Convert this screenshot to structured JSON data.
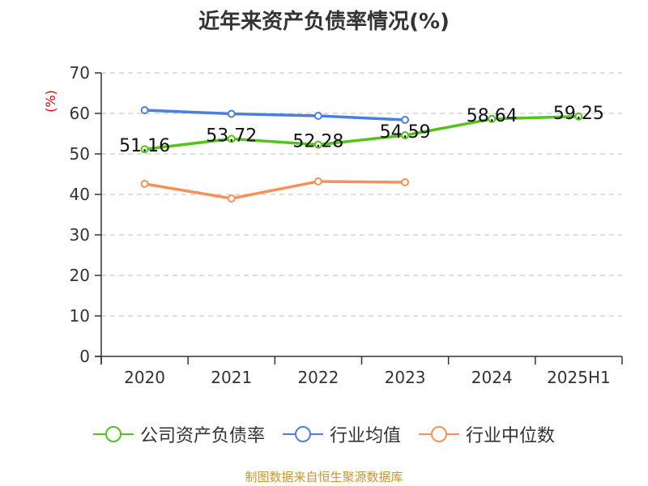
{
  "title": "近年来资产负债率情况(%)",
  "source": "制图数据来自恒生聚源数据库",
  "colors": {
    "company": "#52c41a",
    "industry_avg": "#4a7fde",
    "industry_median": "#f79159",
    "grid": "#cccccc",
    "axis": "#333333",
    "unit": "#e00000"
  },
  "chart_data": {
    "type": "line",
    "title": "近年来资产负债率情况(%)",
    "xlabel": "",
    "ylabel": "(%)",
    "ylim": [
      0,
      70
    ],
    "yticks": [
      0,
      10,
      20,
      30,
      40,
      50,
      60,
      70
    ],
    "grid": true,
    "legend_position": "bottom",
    "categories": [
      "2020",
      "2021",
      "2022",
      "2023",
      "2024",
      "2025H1"
    ],
    "series": [
      {
        "name": "公司资产负债率",
        "color": "#52c41a",
        "values": [
          51.16,
          53.72,
          52.28,
          54.59,
          58.64,
          59.25
        ],
        "labels": [
          "51.16",
          "53.72",
          "52.28",
          "54.59",
          "58.64",
          "59.25"
        ]
      },
      {
        "name": "行业均值",
        "color": "#4a7fde",
        "values": [
          60.8,
          59.9,
          59.4,
          58.4,
          null,
          null
        ]
      },
      {
        "name": "行业中位数",
        "color": "#f79159",
        "values": [
          42.6,
          39.0,
          43.2,
          43.0,
          null,
          null
        ]
      }
    ]
  }
}
